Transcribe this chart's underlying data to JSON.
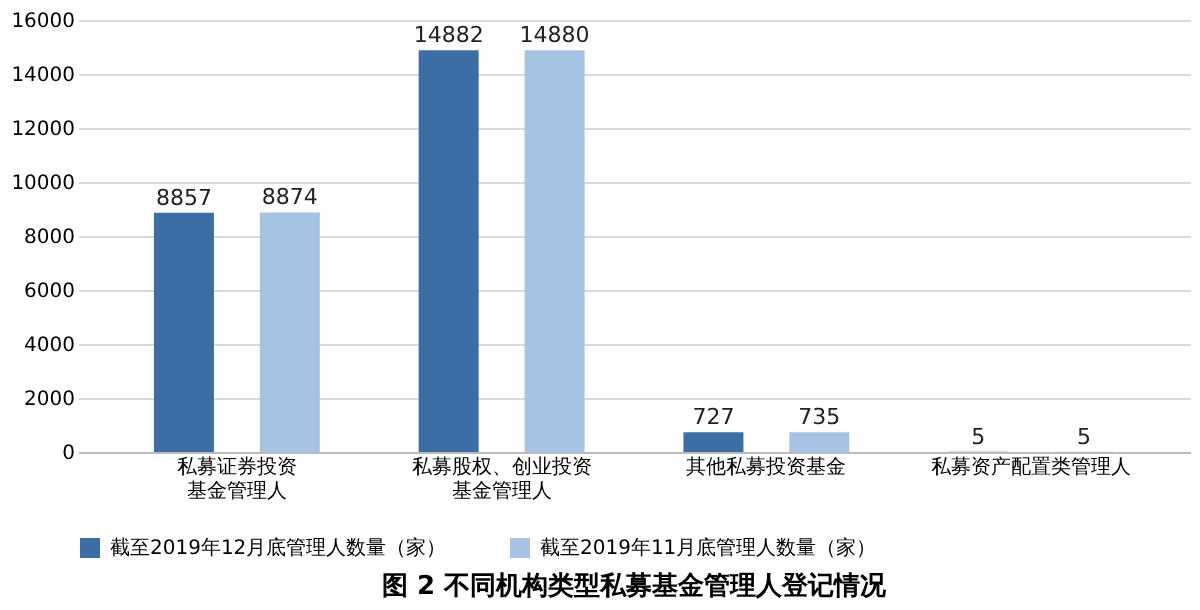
{
  "chart_data": {
    "type": "bar",
    "title": "图 2  不同机构类型私募基金管理人登记情况",
    "categories": [
      "私募证券投资基金管理人",
      "私募股权、创业投资基金管理人",
      "其他私募投资基金",
      "私募资产配置类管理人"
    ],
    "series": [
      {
        "name": "截至2019年12月底管理人数量（家）",
        "color": "#3a6ea5",
        "values": [
          8857,
          14882,
          727,
          5
        ]
      },
      {
        "name": "截至2019年11月底管理人数量（家）",
        "color": "#a7c3e3",
        "values": [
          8874,
          14880,
          735,
          5
        ]
      }
    ],
    "ylim": [
      0,
      16000
    ],
    "yticks": [
      0,
      2000,
      4000,
      6000,
      8000,
      10000,
      12000,
      14000,
      16000
    ],
    "grid": "y",
    "legend": "bottom",
    "data_labels": true
  }
}
